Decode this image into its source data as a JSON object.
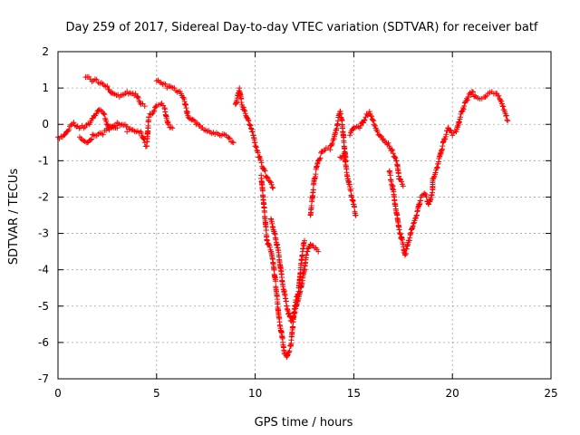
{
  "chart_data": {
    "type": "scatter",
    "title": "Day 259 of 2017, Sidereal Day-to-day VTEC variation (SDTVAR) for receiver batf",
    "xlabel": "GPS time / hours",
    "ylabel": "SDTVAR / TECUs",
    "xlim": [
      0,
      25
    ],
    "ylim": [
      -7,
      2
    ],
    "xticks": [
      "0",
      "5",
      "10",
      "15",
      "20",
      "25"
    ],
    "yticks": [
      "-7",
      "-6",
      "-5",
      "-4",
      "-3",
      "-2",
      "-1",
      "0",
      "1",
      "2"
    ],
    "grid": true,
    "marker": "+",
    "color": "#ff0000",
    "series": [
      {
        "points": [
          [
            0.0,
            -0.35
          ],
          [
            0.3,
            -0.3
          ],
          [
            0.6,
            -0.05
          ],
          [
            0.8,
            0.05
          ],
          [
            1.0,
            -0.05
          ],
          [
            1.3,
            -0.1
          ],
          [
            1.6,
            0.0
          ],
          [
            1.9,
            0.25
          ],
          [
            2.1,
            0.4
          ],
          [
            2.3,
            0.3
          ],
          [
            2.6,
            -0.1
          ],
          [
            3.0,
            0.05
          ],
          [
            3.4,
            0.0
          ],
          [
            3.8,
            -0.15
          ],
          [
            4.2,
            -0.2
          ],
          [
            4.4,
            -0.5
          ],
          [
            4.5,
            -0.6
          ],
          [
            4.6,
            0.2
          ],
          [
            4.8,
            0.3
          ],
          [
            5.0,
            0.5
          ],
          [
            5.2,
            0.55
          ],
          [
            5.4,
            0.45
          ],
          [
            5.6,
            0.0
          ],
          [
            5.8,
            -0.1
          ],
          [
            1.1,
            -0.35
          ],
          [
            1.5,
            -0.5
          ],
          [
            1.8,
            -0.3
          ],
          [
            2.2,
            -0.25
          ],
          [
            2.6,
            -0.15
          ],
          [
            3.0,
            -0.1
          ],
          [
            3.5,
            -0.2
          ],
          [
            1.4,
            1.3
          ],
          [
            1.8,
            1.2
          ],
          [
            2.2,
            1.15
          ],
          [
            2.5,
            1.05
          ],
          [
            2.8,
            0.85
          ],
          [
            3.2,
            0.8
          ],
          [
            3.5,
            0.9
          ],
          [
            3.8,
            0.85
          ],
          [
            4.0,
            0.75
          ],
          [
            4.2,
            0.55
          ],
          [
            4.4,
            0.5
          ],
          [
            5.0,
            1.2
          ],
          [
            5.3,
            1.1
          ],
          [
            5.6,
            1.05
          ],
          [
            5.9,
            1.0
          ],
          [
            6.2,
            0.9
          ],
          [
            6.4,
            0.7
          ],
          [
            6.5,
            0.45
          ],
          [
            6.6,
            0.2
          ],
          [
            7.0,
            0.0
          ],
          [
            7.4,
            -0.15
          ],
          [
            7.8,
            -0.25
          ],
          [
            8.2,
            -0.3
          ],
          [
            8.6,
            -0.35
          ],
          [
            8.9,
            -0.5
          ],
          [
            9.0,
            0.55
          ],
          [
            9.1,
            0.8
          ],
          [
            9.2,
            1.0
          ],
          [
            9.3,
            0.6
          ],
          [
            9.5,
            0.3
          ],
          [
            9.7,
            0.0
          ],
          [
            9.9,
            -0.3
          ],
          [
            10.0,
            -0.6
          ],
          [
            10.2,
            -0.9
          ],
          [
            10.4,
            -1.2
          ],
          [
            10.6,
            -1.45
          ],
          [
            10.8,
            -1.6
          ],
          [
            10.9,
            -1.75
          ],
          [
            10.3,
            -1.4
          ],
          [
            10.4,
            -2.0
          ],
          [
            10.5,
            -2.6
          ],
          [
            10.6,
            -3.2
          ],
          [
            10.8,
            -3.5
          ],
          [
            10.9,
            -3.8
          ],
          [
            11.0,
            -4.2
          ],
          [
            11.1,
            -4.7
          ],
          [
            11.2,
            -5.3
          ],
          [
            11.4,
            -6.0
          ],
          [
            11.5,
            -6.3
          ],
          [
            11.6,
            -6.4
          ],
          [
            11.8,
            -6.1
          ],
          [
            11.9,
            -5.6
          ],
          [
            12.0,
            -5.0
          ],
          [
            12.2,
            -4.6
          ],
          [
            12.3,
            -4.0
          ],
          [
            12.4,
            -3.5
          ],
          [
            12.5,
            -3.2
          ],
          [
            10.8,
            -2.6
          ],
          [
            11.0,
            -3.0
          ],
          [
            11.2,
            -3.6
          ],
          [
            11.4,
            -4.4
          ],
          [
            11.6,
            -5.0
          ],
          [
            11.8,
            -5.4
          ],
          [
            12.0,
            -5.2
          ],
          [
            12.2,
            -4.8
          ],
          [
            12.4,
            -4.3
          ],
          [
            12.6,
            -3.6
          ],
          [
            12.8,
            -3.3
          ],
          [
            13.0,
            -3.4
          ],
          [
            13.2,
            -3.5
          ],
          [
            12.8,
            -2.5
          ],
          [
            12.9,
            -2.0
          ],
          [
            13.0,
            -1.5
          ],
          [
            13.2,
            -1.0
          ],
          [
            13.4,
            -0.75
          ],
          [
            13.6,
            -0.65
          ],
          [
            13.8,
            -0.7
          ],
          [
            14.0,
            -0.4
          ],
          [
            14.2,
            0.1
          ],
          [
            14.3,
            0.35
          ],
          [
            14.4,
            0.1
          ],
          [
            14.5,
            -0.5
          ],
          [
            14.6,
            -1.0
          ],
          [
            14.3,
            -0.9
          ],
          [
            14.5,
            -0.8
          ],
          [
            14.7,
            -1.5
          ],
          [
            14.9,
            -2.0
          ],
          [
            15.1,
            -2.5
          ],
          [
            14.8,
            -0.3
          ],
          [
            15.0,
            -0.1
          ],
          [
            15.3,
            -0.1
          ],
          [
            15.6,
            0.2
          ],
          [
            15.8,
            0.35
          ],
          [
            16.0,
            0.1
          ],
          [
            16.2,
            -0.2
          ],
          [
            16.5,
            -0.4
          ],
          [
            16.8,
            -0.6
          ],
          [
            17.0,
            -0.8
          ],
          [
            17.2,
            -1.1
          ],
          [
            17.3,
            -1.5
          ],
          [
            17.5,
            -1.7
          ],
          [
            16.8,
            -1.3
          ],
          [
            17.0,
            -1.8
          ],
          [
            17.1,
            -2.2
          ],
          [
            17.2,
            -2.5
          ],
          [
            17.3,
            -2.9
          ],
          [
            17.5,
            -3.3
          ],
          [
            17.6,
            -3.6
          ],
          [
            17.8,
            -3.2
          ],
          [
            18.0,
            -2.8
          ],
          [
            18.2,
            -2.5
          ],
          [
            18.4,
            -2.0
          ],
          [
            18.6,
            -1.9
          ],
          [
            18.8,
            -2.2
          ],
          [
            19.0,
            -1.8
          ],
          [
            19.0,
            -1.5
          ],
          [
            19.2,
            -1.2
          ],
          [
            19.4,
            -0.8
          ],
          [
            19.6,
            -0.4
          ],
          [
            19.8,
            -0.1
          ],
          [
            20.0,
            -0.3
          ],
          [
            20.2,
            -0.2
          ],
          [
            20.4,
            0.2
          ],
          [
            20.6,
            0.5
          ],
          [
            20.8,
            0.75
          ],
          [
            21.0,
            0.9
          ],
          [
            21.2,
            0.75
          ],
          [
            21.4,
            0.7
          ],
          [
            21.6,
            0.75
          ],
          [
            21.8,
            0.85
          ],
          [
            22.0,
            0.9
          ],
          [
            22.2,
            0.85
          ],
          [
            22.4,
            0.7
          ],
          [
            22.6,
            0.4
          ],
          [
            22.8,
            0.1
          ]
        ]
      }
    ]
  }
}
